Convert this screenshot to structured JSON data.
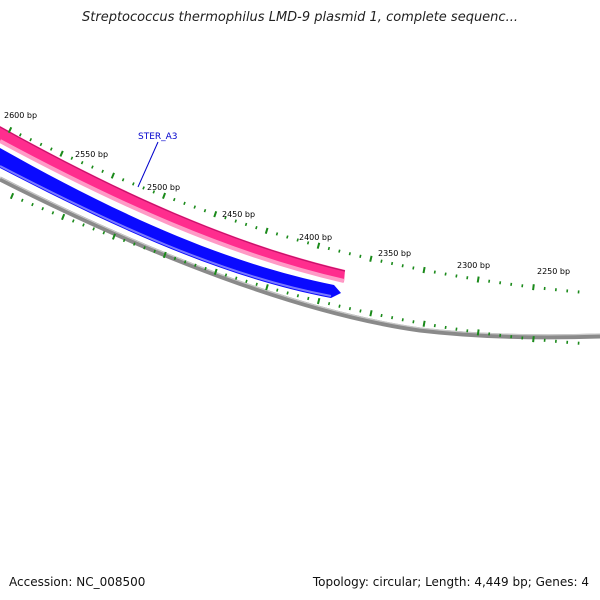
{
  "title": "Streptococcus thermophilus LMD-9 plasmid 1, complete sequenc...",
  "footer": {
    "accession": "Accession: NC_008500",
    "topology": "Topology: circular; Length: 4,449 bp; Genes: 4"
  },
  "colors": {
    "backbone": "#8a8a8a",
    "feature_pink": "#ff2d8e",
    "feature_pink_light": "#ff9ac6",
    "cds_blue": "#0a0aff",
    "cds_blue_light": "#7a7aff",
    "tick_green": "#1a8a1a",
    "gene_label": "#0000cc"
  },
  "scale_labels": [
    "2600 bp",
    "2550 bp",
    "2500 bp",
    "2450 bp",
    "2400 bp",
    "2350 bp",
    "2300 bp",
    "2250 bp"
  ],
  "gene_label": "STER_A3"
}
